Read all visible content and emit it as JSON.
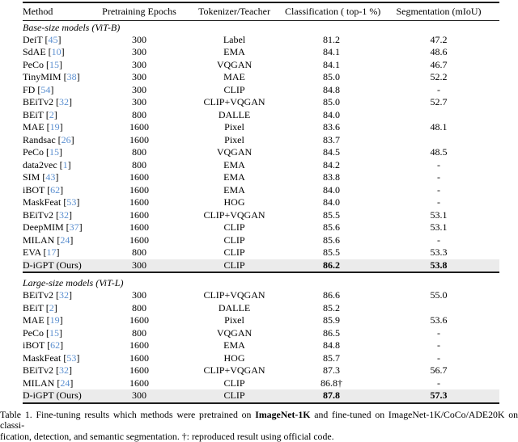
{
  "colors": {
    "citation_blue": "#5b8fd0",
    "highlight_row": "#ebebeb",
    "rule": "#1c1c1c"
  },
  "table": {
    "columns": [
      "Method",
      "Pretraining Epochs",
      "Tokenizer/Teacher",
      "Classification ( top-1 %)",
      "Segmentation (mIoU)"
    ],
    "sections": [
      {
        "title": "Base-size models (ViT-B)",
        "rows": [
          {
            "method": "DeiT",
            "cite": "45",
            "epochs": "300",
            "teacher": "Label",
            "cls": "81.2",
            "seg": "47.2",
            "highlight": false,
            "bold_values": false
          },
          {
            "method": "SdAE",
            "cite": "10",
            "epochs": "300",
            "teacher": "EMA",
            "cls": "84.1",
            "seg": "48.6",
            "highlight": false,
            "bold_values": false
          },
          {
            "method": "PeCo",
            "cite": "15",
            "epochs": "300",
            "teacher": "VQGAN",
            "cls": "84.1",
            "seg": "46.7",
            "highlight": false,
            "bold_values": false
          },
          {
            "method": "TinyMIM",
            "cite": "38",
            "epochs": "300",
            "teacher": "MAE",
            "cls": "85.0",
            "seg": "52.2",
            "highlight": false,
            "bold_values": false
          },
          {
            "method": "FD",
            "cite": "54",
            "epochs": "300",
            "teacher": "CLIP",
            "cls": "84.8",
            "seg": "-",
            "highlight": false,
            "bold_values": false
          },
          {
            "method": "BEiTv2",
            "cite": "32",
            "epochs": "300",
            "teacher": "CLIP+VQGAN",
            "cls": "85.0",
            "seg": "52.7",
            "highlight": false,
            "bold_values": false
          },
          {
            "method": "BEiT",
            "cite": "2",
            "epochs": "800",
            "teacher": "DALLE",
            "cls": "84.0",
            "seg": "",
            "highlight": false,
            "bold_values": false
          },
          {
            "method": "MAE",
            "cite": "19",
            "epochs": "1600",
            "teacher": "Pixel",
            "cls": "83.6",
            "seg": "48.1",
            "highlight": false,
            "bold_values": false
          },
          {
            "method": "Randsac",
            "cite": "26",
            "epochs": "1600",
            "teacher": "Pixel",
            "cls": "83.7",
            "seg": "",
            "highlight": false,
            "bold_values": false
          },
          {
            "method": "PeCo",
            "cite": "15",
            "epochs": "800",
            "teacher": "VQGAN",
            "cls": "84.5",
            "seg": "48.5",
            "highlight": false,
            "bold_values": false
          },
          {
            "method": "data2vec",
            "cite": "1",
            "epochs": "800",
            "teacher": "EMA",
            "cls": "84.2",
            "seg": "-",
            "highlight": false,
            "bold_values": false
          },
          {
            "method": "SIM",
            "cite": "43",
            "epochs": "1600",
            "teacher": "EMA",
            "cls": "83.8",
            "seg": "-",
            "highlight": false,
            "bold_values": false
          },
          {
            "method": "iBOT",
            "cite": "62",
            "epochs": "1600",
            "teacher": "EMA",
            "cls": "84.0",
            "seg": "-",
            "highlight": false,
            "bold_values": false
          },
          {
            "method": "MaskFeat",
            "cite": "53",
            "epochs": "1600",
            "teacher": "HOG",
            "cls": "84.0",
            "seg": "-",
            "highlight": false,
            "bold_values": false
          },
          {
            "method": "BEiTv2",
            "cite": "32",
            "epochs": "1600",
            "teacher": "CLIP+VQGAN",
            "cls": "85.5",
            "seg": "53.1",
            "highlight": false,
            "bold_values": false
          },
          {
            "method": "DeepMIM",
            "cite": "37",
            "epochs": "1600",
            "teacher": "CLIP",
            "cls": "85.6",
            "seg": "53.1",
            "highlight": false,
            "bold_values": false
          },
          {
            "method": "MILAN",
            "cite": "24",
            "epochs": "1600",
            "teacher": "CLIP",
            "cls": "85.6",
            "seg": "-",
            "highlight": false,
            "bold_values": false
          },
          {
            "method": "EVA",
            "cite": "17",
            "epochs": "800",
            "teacher": "CLIP",
            "cls": "85.5",
            "seg": "53.3",
            "highlight": false,
            "bold_values": false
          },
          {
            "method": "D-iGPT (Ours)",
            "cite": null,
            "epochs": "300",
            "teacher": "CLIP",
            "cls": "86.2",
            "seg": "53.8",
            "highlight": true,
            "bold_values": true
          }
        ]
      },
      {
        "title": "Large-size models (ViT-L)",
        "rows": [
          {
            "method": "BEiTv2",
            "cite": "32",
            "epochs": "300",
            "teacher": "CLIP+VQGAN",
            "cls": "86.6",
            "seg": "55.0",
            "highlight": false,
            "bold_values": false
          },
          {
            "method": "BEiT",
            "cite": "2",
            "epochs": "800",
            "teacher": "DALLE",
            "cls": "85.2",
            "seg": "",
            "highlight": false,
            "bold_values": false
          },
          {
            "method": "MAE",
            "cite": "19",
            "epochs": "1600",
            "teacher": "Pixel",
            "cls": "85.9",
            "seg": "53.6",
            "highlight": false,
            "bold_values": false
          },
          {
            "method": "PeCo",
            "cite": "15",
            "epochs": "800",
            "teacher": "VQGAN",
            "cls": "86.5",
            "seg": "-",
            "highlight": false,
            "bold_values": false
          },
          {
            "method": "iBOT",
            "cite": "62",
            "epochs": "1600",
            "teacher": "EMA",
            "cls": "84.8",
            "seg": "-",
            "highlight": false,
            "bold_values": false
          },
          {
            "method": "MaskFeat",
            "cite": "53",
            "epochs": "1600",
            "teacher": "HOG",
            "cls": "85.7",
            "seg": "-",
            "highlight": false,
            "bold_values": false
          },
          {
            "method": "BEiTv2",
            "cite": "32",
            "epochs": "1600",
            "teacher": "CLIP+VQGAN",
            "cls": "87.3",
            "seg": "56.7",
            "highlight": false,
            "bold_values": false
          },
          {
            "method": "MILAN",
            "cite": "24",
            "epochs": "1600",
            "teacher": "CLIP",
            "cls": "86.8†",
            "seg": "-",
            "highlight": false,
            "bold_values": false
          },
          {
            "method": "D-iGPT (Ours)",
            "cite": null,
            "epochs": "300",
            "teacher": "CLIP",
            "cls": "87.8",
            "seg": "57.3",
            "highlight": true,
            "bold_values": true
          }
        ]
      }
    ]
  },
  "caption": {
    "line1_pre": "Table 1. Fine-tuning results which methods were pretrained on ",
    "line1_bold": "ImageNet-1K",
    "line1_post": " and fine-tuned on ImageNet-1K/CoCo/ADE20K on classi-",
    "line2": "fication, detection, and semantic segmentation. †: reproduced result using official code."
  }
}
